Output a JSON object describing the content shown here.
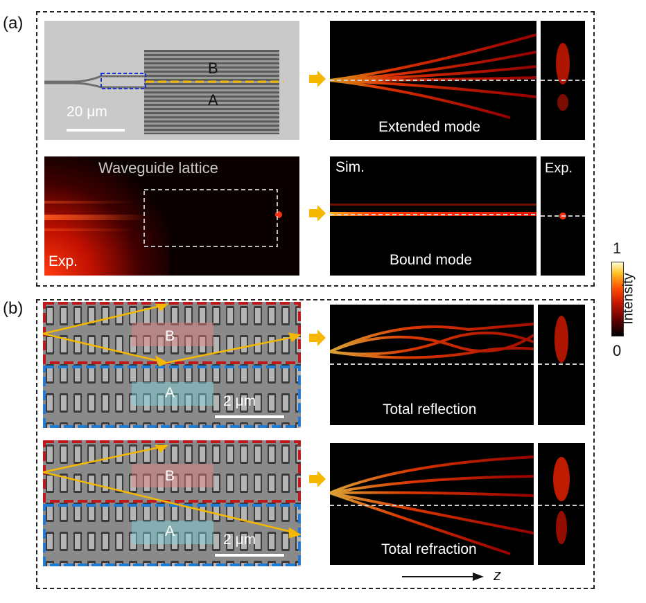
{
  "figure": {
    "panel_a_label": "(a)",
    "panel_b_label": "(b)",
    "micrograph": {
      "label_b": "B",
      "label_a": "A",
      "scale_bar": "20 μm"
    },
    "exp_lattice": {
      "title": "Waveguide lattice",
      "tag": "Exp."
    },
    "sim_extended": {
      "caption": "Extended mode"
    },
    "sim_bound": {
      "tag": "Sim.",
      "caption": "Bound mode",
      "exp_tag": "Exp."
    },
    "sem_reflection": {
      "label_b": "B",
      "label_a": "A",
      "scale_bar": "2 μm"
    },
    "sim_reflection": {
      "caption": "Total reflection"
    },
    "sem_refraction": {
      "label_b": "B",
      "label_a": "A",
      "scale_bar": "2 μm"
    },
    "sim_refraction": {
      "caption": "Total refraction"
    },
    "colorbar": {
      "max": "1",
      "min": "0",
      "label": "Intensity",
      "colors": [
        "#000000",
        "#5a0000",
        "#c81400",
        "#ff5000",
        "#ffc020",
        "#ffffd0"
      ]
    },
    "axis": {
      "label": "z"
    },
    "colors": {
      "arrow": "#f5b800",
      "red_box": "#c0161c",
      "blue_box": "#1f7bd1"
    }
  }
}
